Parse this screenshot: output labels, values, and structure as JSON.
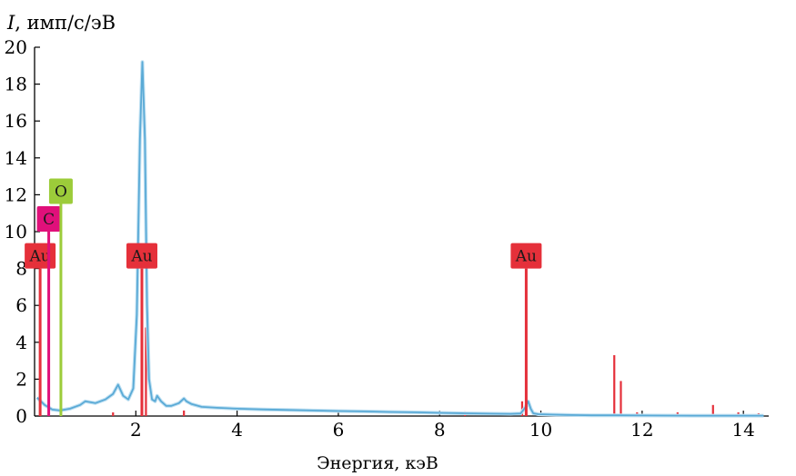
{
  "chart_data": {
    "type": "line",
    "ylabel_symbol": "I",
    "ylabel_rest": ", имп/с/эВ",
    "xlabel": "Энергия, кэВ",
    "xlim": [
      0,
      14.5
    ],
    "ylim": [
      0,
      20
    ],
    "xticks": [
      "2",
      "4",
      "6",
      "8",
      "10",
      "12",
      "14"
    ],
    "yticks": [
      "0",
      "2",
      "4",
      "6",
      "8",
      "10",
      "12",
      "14",
      "16",
      "18",
      "20"
    ],
    "grid": false,
    "colors": {
      "spectrum": "#5aaad6",
      "spectrum_light": "#bfe0f2",
      "au": "#e5303a",
      "c": "#e0107a",
      "o": "#9ccc3a"
    },
    "series": [
      {
        "role": "measured-spectrum",
        "x": [
          0.05,
          0.2,
          0.35,
          0.5,
          0.7,
          0.9,
          1.0,
          1.2,
          1.4,
          1.55,
          1.65,
          1.75,
          1.85,
          1.95,
          2.02,
          2.08,
          2.13,
          2.18,
          2.22,
          2.26,
          2.32,
          2.38,
          2.42,
          2.5,
          2.6,
          2.7,
          2.85,
          2.95,
          3.0,
          3.1,
          3.3,
          3.6,
          4.0,
          4.5,
          5.0,
          5.5,
          6.0,
          6.5,
          7.0,
          7.5,
          8.0,
          8.5,
          9.0,
          9.4,
          9.6,
          9.7,
          9.75,
          9.8,
          9.85,
          9.95,
          10.2,
          10.5,
          11.0,
          11.5,
          12.0,
          13.0,
          14.0,
          14.4
        ],
        "y": [
          1.0,
          0.6,
          0.35,
          0.3,
          0.4,
          0.6,
          0.8,
          0.7,
          0.9,
          1.2,
          1.7,
          1.1,
          0.9,
          1.5,
          5.5,
          15.0,
          19.2,
          15.0,
          6.0,
          2.0,
          0.9,
          0.8,
          1.1,
          0.8,
          0.55,
          0.55,
          0.7,
          0.95,
          0.8,
          0.65,
          0.5,
          0.45,
          0.4,
          0.36,
          0.33,
          0.3,
          0.27,
          0.25,
          0.22,
          0.2,
          0.17,
          0.15,
          0.13,
          0.12,
          0.14,
          0.5,
          0.8,
          0.4,
          0.15,
          0.1,
          0.08,
          0.06,
          0.04,
          0.04,
          0.03,
          0.02,
          0.02,
          0.02
        ]
      }
    ],
    "element_lines": [
      {
        "label": "Au",
        "x": 0.11,
        "height": 8,
        "color_key": "au"
      },
      {
        "label": "C",
        "x": 0.28,
        "height": 10,
        "color_key": "c"
      },
      {
        "label": "O",
        "x": 0.52,
        "height": 11.5,
        "color_key": "o"
      },
      {
        "label": "Au",
        "x": 2.12,
        "height": 8,
        "color_key": "au"
      },
      {
        "label": "Au",
        "x": 9.71,
        "height": 8,
        "color_key": "au"
      }
    ],
    "secondary_peaks": [
      {
        "x": 2.2,
        "height": 4.8
      },
      {
        "x": 11.45,
        "height": 3.3
      },
      {
        "x": 11.58,
        "height": 1.9
      },
      {
        "x": 9.63,
        "height": 0.8
      },
      {
        "x": 13.4,
        "height": 0.6
      },
      {
        "x": 8.5,
        "height": 0.25
      },
      {
        "x": 1.55,
        "height": 0.2
      },
      {
        "x": 2.95,
        "height": 0.3
      },
      {
        "x": 12.7,
        "height": 0.2
      },
      {
        "x": 11.9,
        "height": 0.2
      },
      {
        "x": 13.9,
        "height": 0.2
      },
      {
        "x": 14.3,
        "height": 0.15
      }
    ]
  }
}
